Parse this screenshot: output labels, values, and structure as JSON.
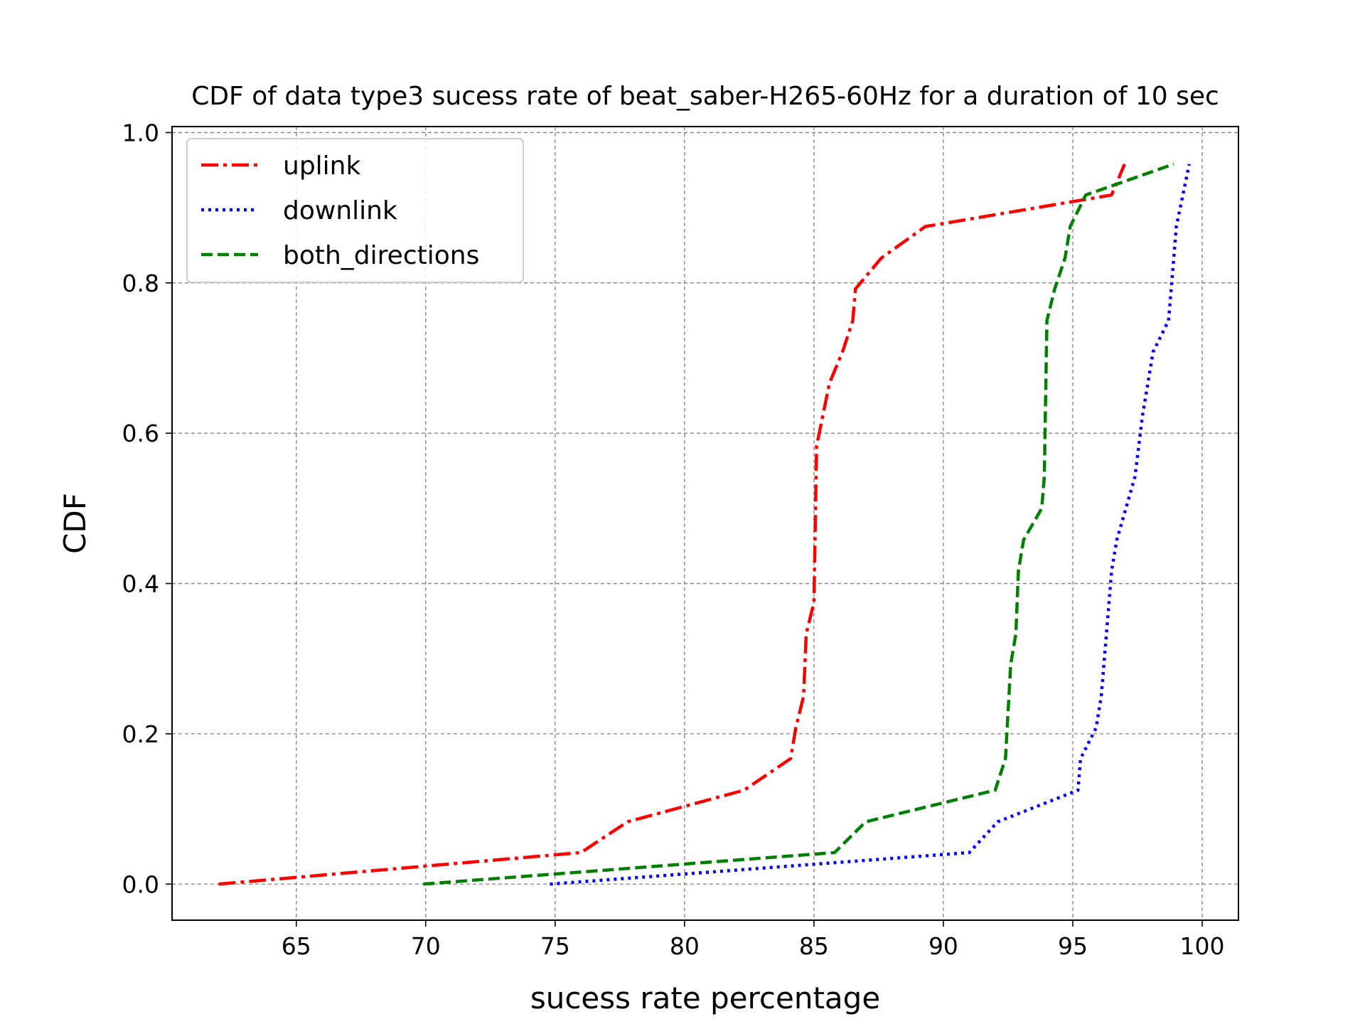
{
  "chart_data": {
    "type": "line",
    "title": "CDF of data type3 sucess rate of beat_saber-H265-60Hz for a duration of 10 sec",
    "xlabel": "sucess rate percentage",
    "ylabel": "CDF",
    "xlim": [
      60.2,
      101.4
    ],
    "ylim": [
      -0.048,
      1.008
    ],
    "xticks": [
      65,
      70,
      75,
      80,
      85,
      90,
      95,
      100
    ],
    "yticks": [
      0.0,
      0.2,
      0.4,
      0.6,
      0.8,
      1.0
    ],
    "xtick_labels": [
      "65",
      "70",
      "75",
      "80",
      "85",
      "90",
      "95",
      "100"
    ],
    "ytick_labels": [
      "0.0",
      "0.2",
      "0.4",
      "0.6",
      "0.8",
      "1.0"
    ],
    "grid": true,
    "legend_position": "top-left",
    "series": [
      {
        "name": "uplink",
        "color": "#ff0000",
        "style": "dashdot",
        "x": [
          62.0,
          76.0,
          77.8,
          82.3,
          84.1,
          84.3,
          84.6,
          84.7,
          85.0,
          85.1,
          85.6,
          86.1,
          86.5,
          86.6,
          87.6,
          89.3,
          96.5,
          97.0
        ],
        "y": [
          0.0,
          0.042,
          0.083,
          0.125,
          0.167,
          0.208,
          0.25,
          0.333,
          0.375,
          0.583,
          0.667,
          0.708,
          0.75,
          0.792,
          0.833,
          0.875,
          0.917,
          0.958
        ]
      },
      {
        "name": "downlink",
        "color": "#0000ff",
        "style": "dotted",
        "x": [
          74.8,
          91.0,
          92.1,
          95.2,
          95.3,
          95.9,
          96.1,
          96.3,
          96.5,
          96.7,
          97.4,
          97.7,
          98.1,
          98.7,
          98.9,
          99.0,
          99.5
        ],
        "y": [
          0.0,
          0.042,
          0.083,
          0.125,
          0.167,
          0.208,
          0.25,
          0.333,
          0.417,
          0.458,
          0.542,
          0.625,
          0.708,
          0.75,
          0.833,
          0.875,
          0.958
        ]
      },
      {
        "name": "both_directions",
        "color": "#008000",
        "style": "dashed",
        "x": [
          69.9,
          85.8,
          87.0,
          92.0,
          92.4,
          92.6,
          92.8,
          92.9,
          93.1,
          93.8,
          93.9,
          94.0,
          94.3,
          94.7,
          94.9,
          95.5,
          98.9
        ],
        "y": [
          0.0,
          0.042,
          0.083,
          0.125,
          0.167,
          0.292,
          0.333,
          0.417,
          0.458,
          0.5,
          0.542,
          0.75,
          0.792,
          0.833,
          0.875,
          0.917,
          0.958
        ]
      }
    ]
  }
}
